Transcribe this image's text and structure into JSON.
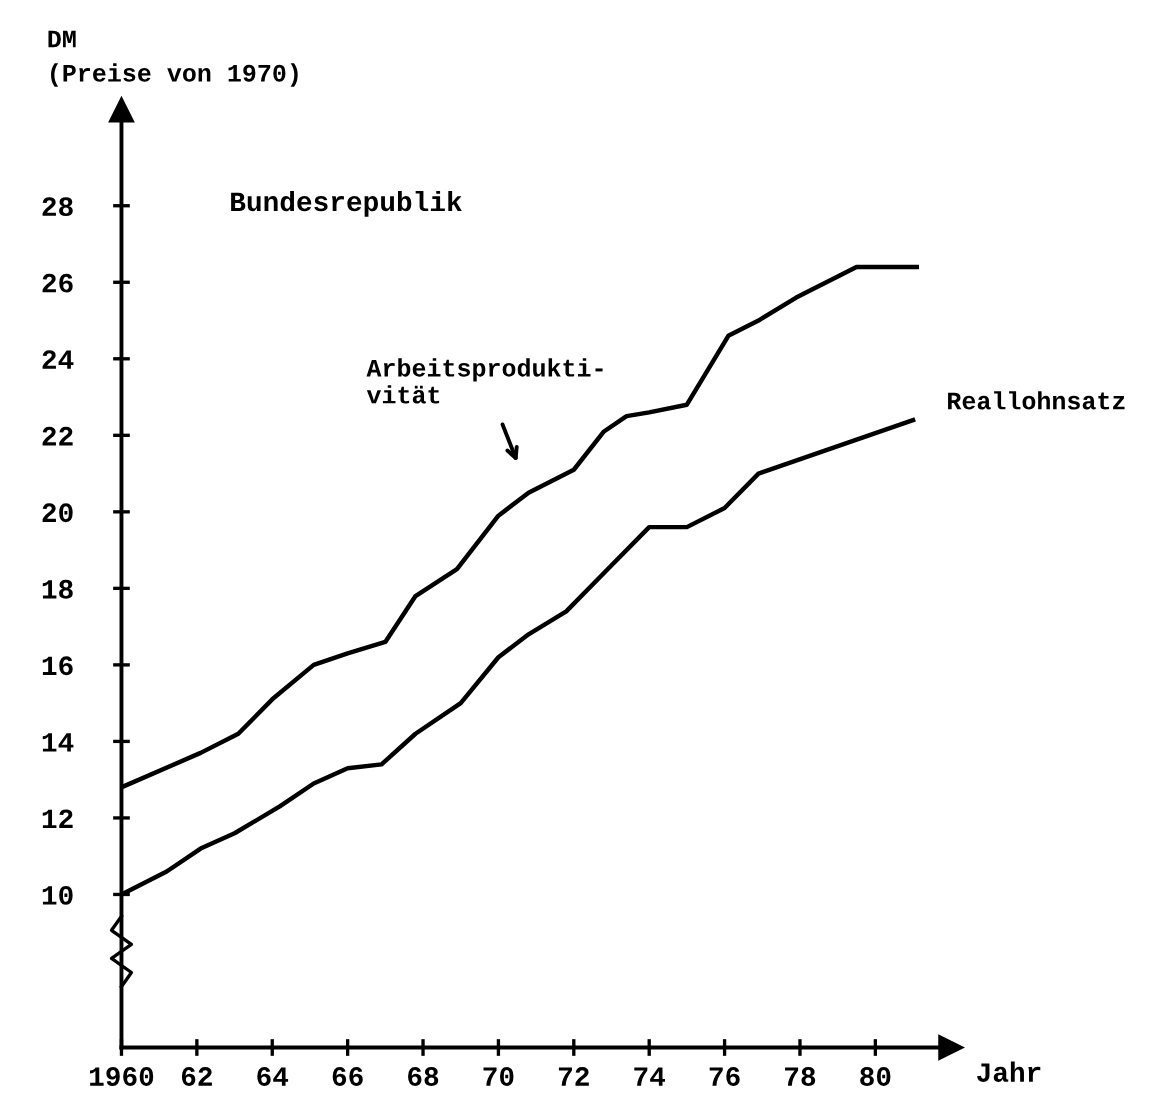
{
  "chart_data": {
    "type": "line",
    "title": "Bundesrepublik",
    "xlabel": "Jahr",
    "ylabel": "DM\n(Preise von 1970)",
    "xlim": [
      1960,
      1982
    ],
    "ylim": [
      6,
      30.5
    ],
    "xticks": [
      1960,
      {
        "value": 1962,
        "label": "62"
      },
      {
        "value": 1964,
        "label": "64"
      },
      {
        "value": 1966,
        "label": "66"
      },
      {
        "value": 1968,
        "label": "68"
      },
      {
        "value": 1970,
        "label": "70"
      },
      {
        "value": 1972,
        "label": "72"
      },
      {
        "value": 1974,
        "label": "74"
      },
      {
        "value": 1976,
        "label": "76"
      },
      {
        "value": 1978,
        "label": "78"
      },
      {
        "value": 1980,
        "label": "80"
      }
    ],
    "yticks": [
      10,
      12,
      14,
      16,
      18,
      20,
      22,
      24,
      26,
      28
    ],
    "grid": false,
    "marker": "none",
    "line_style": "solid",
    "series": [
      {
        "name": "Arbeitsprodukti-\nvität",
        "color": "#000000",
        "x": [
          1960,
          1962.1,
          1963.1,
          1964.0,
          1965.1,
          1966.0,
          1967.0,
          1967.8,
          1968.9,
          1970.0,
          1970.8,
          1972.0,
          1972.8,
          1973.4,
          1974.0,
          1975.0,
          1976.1,
          1976.9,
          1977.9,
          1979.5,
          1981.1
        ],
        "values": [
          12.8,
          13.7,
          14.2,
          15.1,
          16.0,
          16.3,
          16.6,
          17.8,
          18.5,
          19.9,
          20.5,
          21.1,
          22.1,
          22.5,
          22.6,
          22.8,
          24.6,
          25.0,
          25.6,
          26.4,
          26.4
        ]
      },
      {
        "name": "Reallohnsatz",
        "color": "#000000",
        "x": [
          1960,
          1961.2,
          1962.1,
          1963.0,
          1964.2,
          1965.1,
          1966.0,
          1966.9,
          1967.8,
          1969.0,
          1970.0,
          1970.8,
          1971.8,
          1972.8,
          1974.0,
          1975.0,
          1976.0,
          1976.9,
          1981.0
        ],
        "values": [
          10.0,
          10.6,
          11.2,
          11.6,
          12.3,
          12.9,
          13.3,
          13.4,
          14.2,
          15.0,
          16.2,
          16.8,
          17.4,
          18.4,
          19.6,
          19.6,
          20.1,
          21.0,
          22.4
        ]
      }
    ]
  }
}
